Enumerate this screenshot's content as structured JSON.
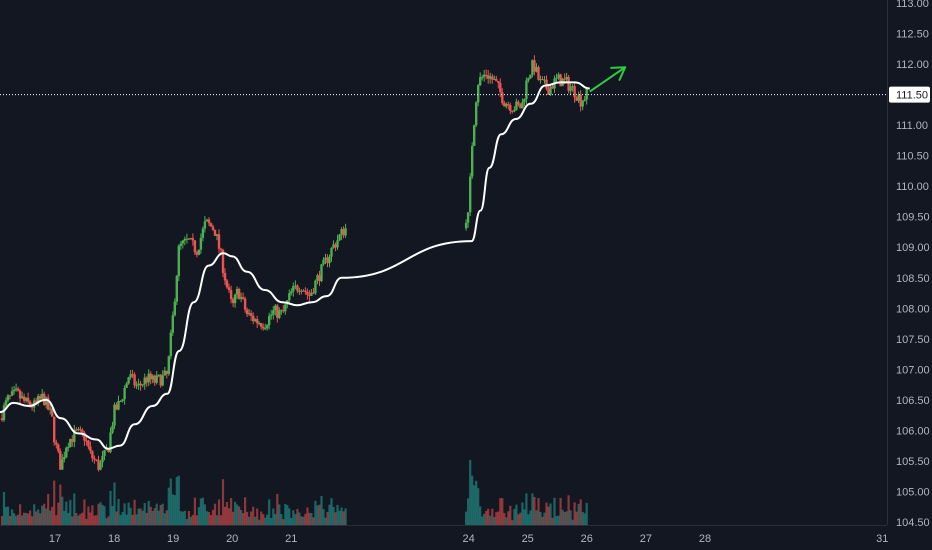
{
  "chart_data": {
    "type": "candlestick",
    "title": "",
    "xlabel": "",
    "ylabel": "",
    "ylim": [
      104.45,
      113.05
    ],
    "xlim": [
      16.07,
      31.08
    ],
    "grid": false,
    "colors": {
      "background": "#131722",
      "up": "#26a69a",
      "up_candle": "#4caf50",
      "down": "#ef5350",
      "moving_average": "#ffffff",
      "arrow": "#2ecc40",
      "text": "#b2b5be",
      "axis_line": "#2a2e39",
      "price_tag": "#ffffff"
    },
    "y_ticks": [
      "104.50",
      "105.00",
      "105.50",
      "106.00",
      "106.50",
      "107.00",
      "107.50",
      "108.00",
      "108.50",
      "109.00",
      "109.50",
      "110.00",
      "110.50",
      "111.00",
      "111.50",
      "112.00",
      "112.50",
      "113.00"
    ],
    "x_ticks": [
      {
        "value": 17,
        "label": "17"
      },
      {
        "value": 18,
        "label": "18"
      },
      {
        "value": 19,
        "label": "19"
      },
      {
        "value": 20,
        "label": "20"
      },
      {
        "value": 21,
        "label": "21"
      },
      {
        "value": 24,
        "label": "24"
      },
      {
        "value": 25,
        "label": "25"
      },
      {
        "value": 26,
        "label": "26"
      },
      {
        "value": 27,
        "label": "27"
      },
      {
        "value": 28,
        "label": "28"
      },
      {
        "value": 31,
        "label": "31"
      }
    ],
    "current_price": {
      "value": 111.5,
      "label": "111.50"
    },
    "close_series": [
      {
        "x": 16.07,
        "y": 106.2
      },
      {
        "x": 16.2,
        "y": 106.5
      },
      {
        "x": 16.35,
        "y": 106.6
      },
      {
        "x": 16.5,
        "y": 106.45
      },
      {
        "x": 16.65,
        "y": 106.4
      },
      {
        "x": 16.8,
        "y": 106.55
      },
      {
        "x": 16.95,
        "y": 106.2
      },
      {
        "x": 17.0,
        "y": 105.8
      },
      {
        "x": 17.1,
        "y": 105.4
      },
      {
        "x": 17.2,
        "y": 105.8
      },
      {
        "x": 17.35,
        "y": 105.95
      },
      {
        "x": 17.5,
        "y": 105.9
      },
      {
        "x": 17.6,
        "y": 105.6
      },
      {
        "x": 17.75,
        "y": 105.4
      },
      {
        "x": 17.9,
        "y": 105.7
      },
      {
        "x": 18.0,
        "y": 106.3
      },
      {
        "x": 18.1,
        "y": 106.45
      },
      {
        "x": 18.25,
        "y": 106.9
      },
      {
        "x": 18.4,
        "y": 106.7
      },
      {
        "x": 18.55,
        "y": 106.85
      },
      {
        "x": 18.7,
        "y": 106.8
      },
      {
        "x": 18.9,
        "y": 106.9
      },
      {
        "x": 19.0,
        "y": 107.9
      },
      {
        "x": 19.1,
        "y": 109.0
      },
      {
        "x": 19.25,
        "y": 109.1
      },
      {
        "x": 19.4,
        "y": 108.95
      },
      {
        "x": 19.55,
        "y": 109.4
      },
      {
        "x": 19.7,
        "y": 109.3
      },
      {
        "x": 19.8,
        "y": 108.9
      },
      {
        "x": 19.9,
        "y": 108.4
      },
      {
        "x": 20.0,
        "y": 108.0
      },
      {
        "x": 20.1,
        "y": 108.3
      },
      {
        "x": 20.25,
        "y": 107.9
      },
      {
        "x": 20.4,
        "y": 107.8
      },
      {
        "x": 20.55,
        "y": 107.75
      },
      {
        "x": 20.7,
        "y": 107.95
      },
      {
        "x": 20.85,
        "y": 107.9
      },
      {
        "x": 21.0,
        "y": 108.25
      },
      {
        "x": 21.15,
        "y": 108.4
      },
      {
        "x": 21.3,
        "y": 108.2
      },
      {
        "x": 21.5,
        "y": 108.6
      },
      {
        "x": 21.7,
        "y": 109.0
      },
      {
        "x": 21.9,
        "y": 109.3
      },
      {
        "x": 24.0,
        "y": 109.5
      },
      {
        "x": 24.05,
        "y": 110.6
      },
      {
        "x": 24.15,
        "y": 111.7
      },
      {
        "x": 24.3,
        "y": 111.85
      },
      {
        "x": 24.45,
        "y": 111.7
      },
      {
        "x": 24.6,
        "y": 111.4
      },
      {
        "x": 24.75,
        "y": 111.3
      },
      {
        "x": 24.9,
        "y": 111.3
      },
      {
        "x": 25.0,
        "y": 111.8
      },
      {
        "x": 25.1,
        "y": 112.0
      },
      {
        "x": 25.2,
        "y": 111.7
      },
      {
        "x": 25.35,
        "y": 111.6
      },
      {
        "x": 25.5,
        "y": 111.75
      },
      {
        "x": 25.65,
        "y": 111.7
      },
      {
        "x": 25.8,
        "y": 111.55
      },
      {
        "x": 25.9,
        "y": 111.4
      },
      {
        "x": 26.0,
        "y": 111.5
      }
    ],
    "moving_average": [
      {
        "x": 16.07,
        "y": 106.3
      },
      {
        "x": 16.3,
        "y": 106.45
      },
      {
        "x": 16.55,
        "y": 106.4
      },
      {
        "x": 16.85,
        "y": 106.5
      },
      {
        "x": 17.1,
        "y": 106.2
      },
      {
        "x": 17.4,
        "y": 105.95
      },
      {
        "x": 17.7,
        "y": 105.85
      },
      {
        "x": 17.9,
        "y": 105.7
      },
      {
        "x": 18.1,
        "y": 105.75
      },
      {
        "x": 18.35,
        "y": 106.1
      },
      {
        "x": 18.65,
        "y": 106.4
      },
      {
        "x": 18.9,
        "y": 106.6
      },
      {
        "x": 19.1,
        "y": 107.3
      },
      {
        "x": 19.35,
        "y": 108.1
      },
      {
        "x": 19.6,
        "y": 108.7
      },
      {
        "x": 19.85,
        "y": 108.9
      },
      {
        "x": 20.0,
        "y": 108.85
      },
      {
        "x": 20.25,
        "y": 108.6
      },
      {
        "x": 20.55,
        "y": 108.3
      },
      {
        "x": 20.85,
        "y": 108.1
      },
      {
        "x": 21.1,
        "y": 108.05
      },
      {
        "x": 21.35,
        "y": 108.1
      },
      {
        "x": 21.6,
        "y": 108.2
      },
      {
        "x": 21.85,
        "y": 108.5
      },
      {
        "x": 24.05,
        "y": 109.1
      },
      {
        "x": 24.2,
        "y": 109.6
      },
      {
        "x": 24.35,
        "y": 110.3
      },
      {
        "x": 24.55,
        "y": 110.85
      },
      {
        "x": 24.8,
        "y": 111.1
      },
      {
        "x": 25.05,
        "y": 111.35
      },
      {
        "x": 25.3,
        "y": 111.65
      },
      {
        "x": 25.55,
        "y": 111.7
      },
      {
        "x": 25.8,
        "y": 111.7
      },
      {
        "x": 26.05,
        "y": 111.6
      }
    ],
    "arrow": {
      "from": {
        "x": 26.05,
        "y": 111.55
      },
      "to": {
        "x": 26.65,
        "y": 111.95
      }
    }
  }
}
